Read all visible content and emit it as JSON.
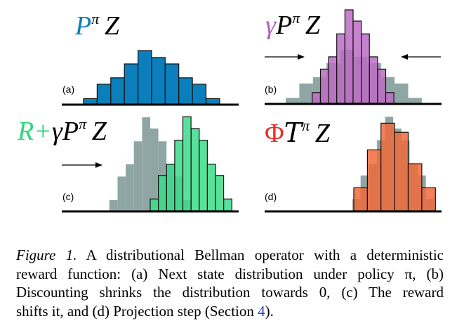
{
  "colors": {
    "blue": "#0a7fbb",
    "purple": "#bd6cc4",
    "green": "#3bdc88",
    "orange": "#f06a3c",
    "gray": "#8fa6a4",
    "gamma_purple": "#b061c0",
    "reward_green": "#2fd77a",
    "phi_red": "#e8302c",
    "link_blue": "#2a3fbf"
  },
  "chart_data": [
    {
      "type": "bar",
      "panel_label": "(a)",
      "title": {
        "p": "P",
        "sup": "π",
        "z": "Z"
      },
      "xlim": [
        0,
        13
      ],
      "ylim": [
        0,
        18
      ],
      "series": [
        {
          "role": "current",
          "color": "blue",
          "bin_start": 1.6,
          "bin_width": 1.0,
          "values": [
            1.0,
            3.7,
            4.9,
            7.5,
            10.0,
            8.7,
            7.5,
            4.9,
            3.7,
            1.0
          ]
        }
      ]
    },
    {
      "type": "bar",
      "panel_label": "(b)",
      "title": {
        "gamma": "γ",
        "p": "P",
        "sup": "π",
        "z": "Z"
      },
      "arrows": [
        "right",
        "left"
      ],
      "xlim": [
        0,
        13
      ],
      "ylim": [
        0,
        18
      ],
      "series": [
        {
          "role": "previous",
          "color": "gray",
          "bin_start": 1.55,
          "bin_width": 1.0,
          "values": [
            1.0,
            3.7,
            4.9,
            7.5,
            10.0,
            8.7,
            7.5,
            4.9,
            3.7,
            1.0
          ]
        },
        {
          "role": "current",
          "color": "purple",
          "bin_start": 3.5,
          "bin_width": 0.6,
          "values": [
            2.0,
            6.4,
            8.7,
            13.0,
            17.5,
            15.4,
            13.0,
            8.7,
            6.4,
            2.0
          ]
        }
      ]
    },
    {
      "type": "bar",
      "panel_label": "(c)",
      "title": {
        "r": "R+",
        "gamma": "γ",
        "p": "P",
        "sup": "π",
        "z": "Z"
      },
      "arrows": [
        "right"
      ],
      "xlim": [
        0,
        13
      ],
      "ylim": [
        0,
        18
      ],
      "series": [
        {
          "role": "previous",
          "color": "gray",
          "bin_start": 3.5,
          "bin_width": 0.6,
          "values": [
            2.0,
            6.4,
            8.7,
            13.0,
            17.5,
            15.4,
            13.0,
            8.7,
            6.4,
            2.0
          ]
        },
        {
          "role": "current",
          "color": "green",
          "bin_start": 6.5,
          "bin_width": 0.6,
          "values": [
            2.2,
            6.6,
            8.7,
            13.2,
            17.6,
            15.4,
            13.2,
            8.7,
            6.6,
            2.2
          ]
        }
      ]
    },
    {
      "type": "bar",
      "panel_label": "(d)",
      "title": {
        "phi": "Φ",
        "t": "T",
        "sup": "π",
        "z": "Z"
      },
      "xlim": [
        0,
        13
      ],
      "ylim": [
        0,
        18
      ],
      "series": [
        {
          "role": "previous",
          "color": "gray",
          "bin_start": 6.45,
          "bin_width": 0.6,
          "values": [
            2.2,
            6.6,
            8.7,
            13.2,
            17.6,
            15.4,
            13.2,
            8.7,
            6.6,
            2.2
          ]
        },
        {
          "role": "current",
          "color": "orange",
          "bin_start": 6.55,
          "bin_width": 1.0,
          "values": [
            4.3,
            11.4,
            16.4,
            14.7,
            8.8,
            4.3
          ]
        }
      ]
    }
  ],
  "caption": {
    "label": "Figure 1.",
    "line1": "A distributional Bellman operator with a deterministic",
    "line2": "reward function: (a) Next state distribution under policy π, (b)",
    "line3": "Discounting shrinks the distribution towards 0, (c) The reward",
    "line4_pre": "shifts it, and (d) Projection step (Section ",
    "line4_link": "4",
    "line4_post": ")."
  }
}
